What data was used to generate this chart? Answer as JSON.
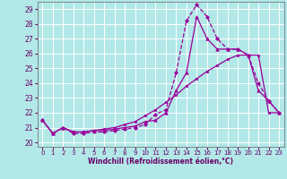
{
  "xlabel": "Windchill (Refroidissement éolien,°C)",
  "bg_color": "#b2e8e8",
  "grid_color": "#ffffff",
  "line_color": "#990099",
  "xlim": [
    -0.5,
    23.5
  ],
  "ylim": [
    19.7,
    29.5
  ],
  "xticks": [
    0,
    1,
    2,
    3,
    4,
    5,
    6,
    7,
    8,
    9,
    10,
    11,
    12,
    13,
    14,
    15,
    16,
    17,
    18,
    19,
    20,
    21,
    22,
    23
  ],
  "yticks": [
    20,
    21,
    22,
    23,
    24,
    25,
    26,
    27,
    28,
    29
  ],
  "line1_x": [
    0,
    1,
    2,
    3,
    4,
    5,
    6,
    7,
    8,
    9,
    10,
    11,
    12,
    13,
    14,
    15,
    16,
    17,
    18,
    19,
    20,
    21,
    22,
    23
  ],
  "line1_y": [
    21.5,
    20.6,
    21.0,
    20.6,
    20.6,
    20.7,
    20.7,
    20.8,
    20.9,
    21.0,
    21.2,
    21.9,
    22.2,
    24.7,
    28.2,
    29.3,
    28.5,
    27.0,
    26.3,
    26.3,
    25.9,
    24.0,
    22.8,
    22.0
  ],
  "line2_x": [
    0,
    1,
    2,
    3,
    4,
    5,
    6,
    7,
    8,
    9,
    10,
    11,
    12,
    13,
    14,
    15,
    16,
    17,
    18,
    19,
    20,
    21,
    22,
    23
  ],
  "line2_y": [
    21.5,
    20.6,
    21.0,
    20.7,
    20.7,
    20.8,
    20.8,
    20.9,
    21.0,
    21.1,
    21.4,
    21.5,
    22.0,
    23.5,
    24.7,
    28.5,
    27.0,
    26.3,
    26.3,
    26.3,
    25.9,
    23.5,
    22.8,
    22.0
  ],
  "line3_x": [
    0,
    1,
    2,
    3,
    4,
    5,
    6,
    7,
    8,
    9,
    10,
    11,
    12,
    13,
    14,
    15,
    16,
    17,
    18,
    19,
    20,
    21,
    22,
    23
  ],
  "line3_y": [
    21.5,
    20.6,
    21.0,
    20.7,
    20.7,
    20.8,
    20.9,
    21.0,
    21.2,
    21.4,
    21.8,
    22.2,
    22.7,
    23.2,
    23.8,
    24.3,
    24.8,
    25.2,
    25.6,
    25.9,
    25.9,
    25.9,
    22.0,
    22.0
  ]
}
